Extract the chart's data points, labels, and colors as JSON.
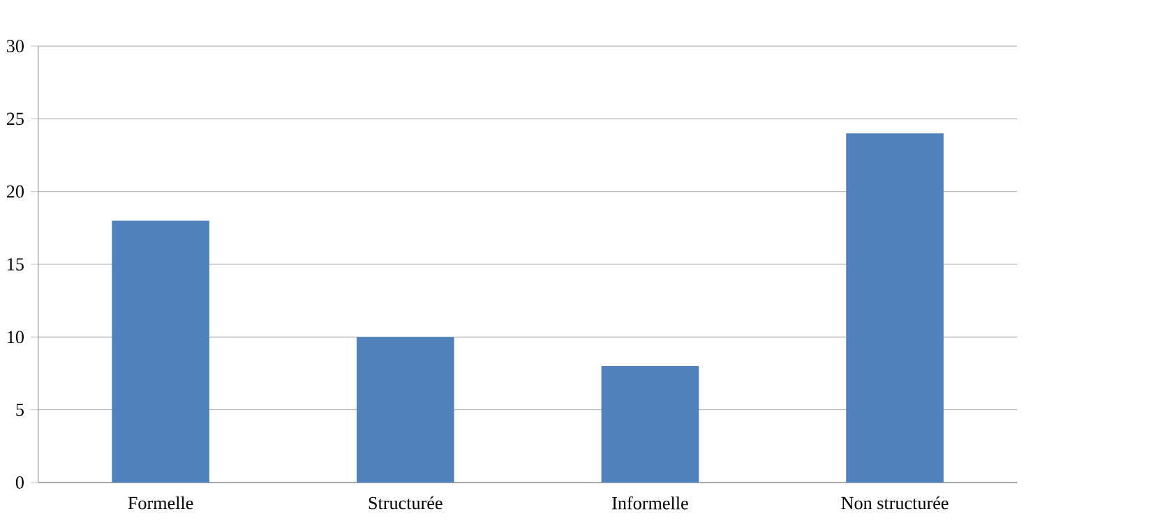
{
  "chart_data": {
    "type": "bar",
    "categories": [
      "Formelle",
      "Structurée",
      "Informelle",
      "Non structurée"
    ],
    "values": [
      18,
      10,
      8,
      24
    ],
    "color": "#4f81bd",
    "ylim": [
      0,
      30
    ],
    "yticks": [
      0,
      5,
      10,
      15,
      20,
      25,
      30
    ],
    "grid": "y"
  }
}
